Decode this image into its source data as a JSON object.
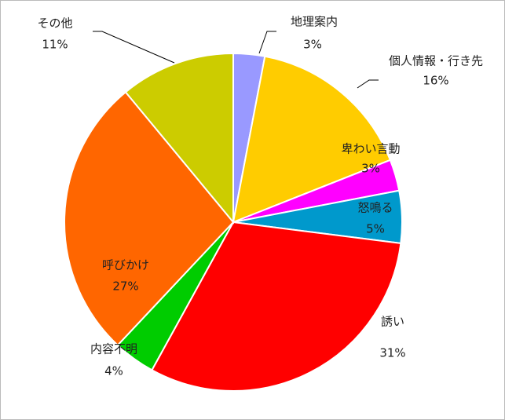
{
  "chart_data": {
    "type": "pie",
    "categories": [
      "地理案内",
      "個人情報・行き先",
      "卑わい言動",
      "怒鳴る",
      "誘い",
      "内容不明",
      "呼びかけ",
      "その他"
    ],
    "values": [
      3,
      16,
      3,
      5,
      31,
      4,
      27,
      11
    ],
    "value_labels": [
      "3%",
      "16%",
      "3%",
      "5%",
      "31%",
      "4%",
      "27%",
      "11%"
    ],
    "colors": [
      "#9999ff",
      "#ffcc00",
      "#ff00ff",
      "#0099cc",
      "#ff0000",
      "#00cc00",
      "#ff6600",
      "#cccc00"
    ]
  }
}
